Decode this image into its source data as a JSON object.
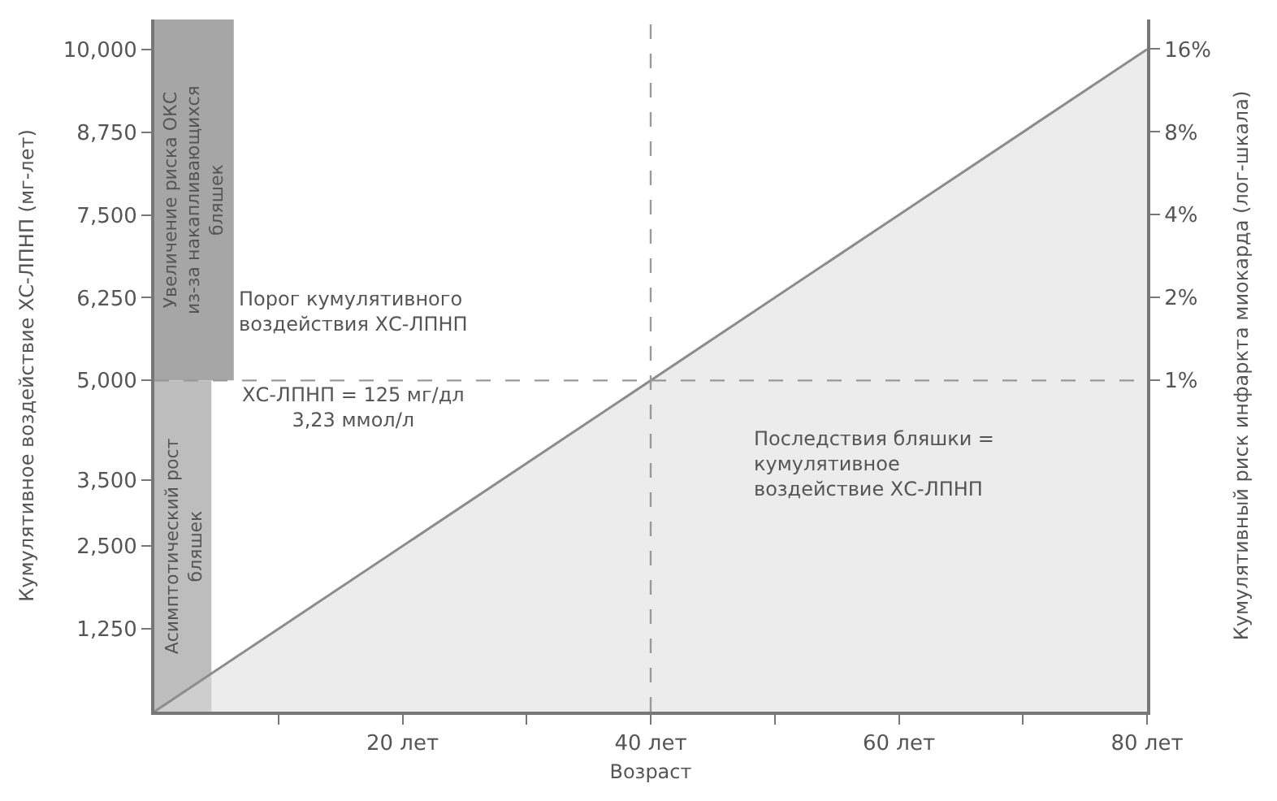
{
  "chart_data": {
    "type": "area",
    "xlabel": "Возраст",
    "ylabel": "Кумулятивное воздействие ХС-ЛПНП (мг-лет)",
    "y2label": "Кумулятивный риск инфаркта миокарда (лог-шкала)",
    "x": [
      0,
      80
    ],
    "series": [
      {
        "color": "#8c8c8c",
        "values": [
          0,
          10000
        ]
      }
    ],
    "xlim": [
      0,
      80
    ],
    "xticks": [
      {
        "value": 10,
        "label": null
      },
      {
        "value": 20,
        "label": "20 лет"
      },
      {
        "value": 30,
        "label": null
      },
      {
        "value": 40,
        "label": "40 лет"
      },
      {
        "value": 50,
        "label": null
      },
      {
        "value": 60,
        "label": "60 лет"
      },
      {
        "value": 70,
        "label": null
      },
      {
        "value": 80,
        "label": "80 лет"
      }
    ],
    "ylim": [
      0,
      10450
    ],
    "yticks": [
      {
        "value": 1250,
        "label": "1,250"
      },
      {
        "value": 2500,
        "label": "2,500"
      },
      {
        "value": 3500,
        "label": "3,500"
      },
      {
        "value": 5000,
        "label": "5,000"
      },
      {
        "value": 6250,
        "label": "6,250"
      },
      {
        "value": 7500,
        "label": "7,500"
      },
      {
        "value": 8750,
        "label": "8,750"
      },
      {
        "value": 10000,
        "label": "10,000"
      }
    ],
    "log": "y2",
    "y2lim": [
      0.0625,
      20.5
    ],
    "y2ticks": [
      {
        "value": 1,
        "label": "1%"
      },
      {
        "value": 2,
        "label": "2%"
      },
      {
        "value": 4,
        "label": "4%"
      },
      {
        "value": 8,
        "label": "8%"
      },
      {
        "value": 16,
        "label": "16%"
      }
    ],
    "ref_lines": [
      {
        "axis": "y",
        "value": 5000,
        "label": "Порог кумулятивного\nвоздействия ХС-ЛПНП",
        "color": "#999999",
        "line_style": "dashed"
      },
      {
        "axis": "x",
        "value": 40,
        "color": "#999999",
        "line_style": "dashed"
      }
    ],
    "bands": [
      {
        "axis": "x",
        "from": 0,
        "to": 6.4,
        "label": "Увеличение риска ОКС\nиз-за накапливающихся\nбляшек",
        "color": "#a6a6a6"
      },
      {
        "axis": "x",
        "from": 0,
        "to": 4.6,
        "label": "Асимптотический рост\nбляшек",
        "color": "#bdbdbd"
      }
    ],
    "annotations": [
      "ХС-ЛПНП = 125 мг/дл\n3,23 ммол/л",
      "Последствия бляшки =\nкумулятивное\nвоздействие ХС-ЛПНП"
    ],
    "legend": false,
    "grid": false
  }
}
